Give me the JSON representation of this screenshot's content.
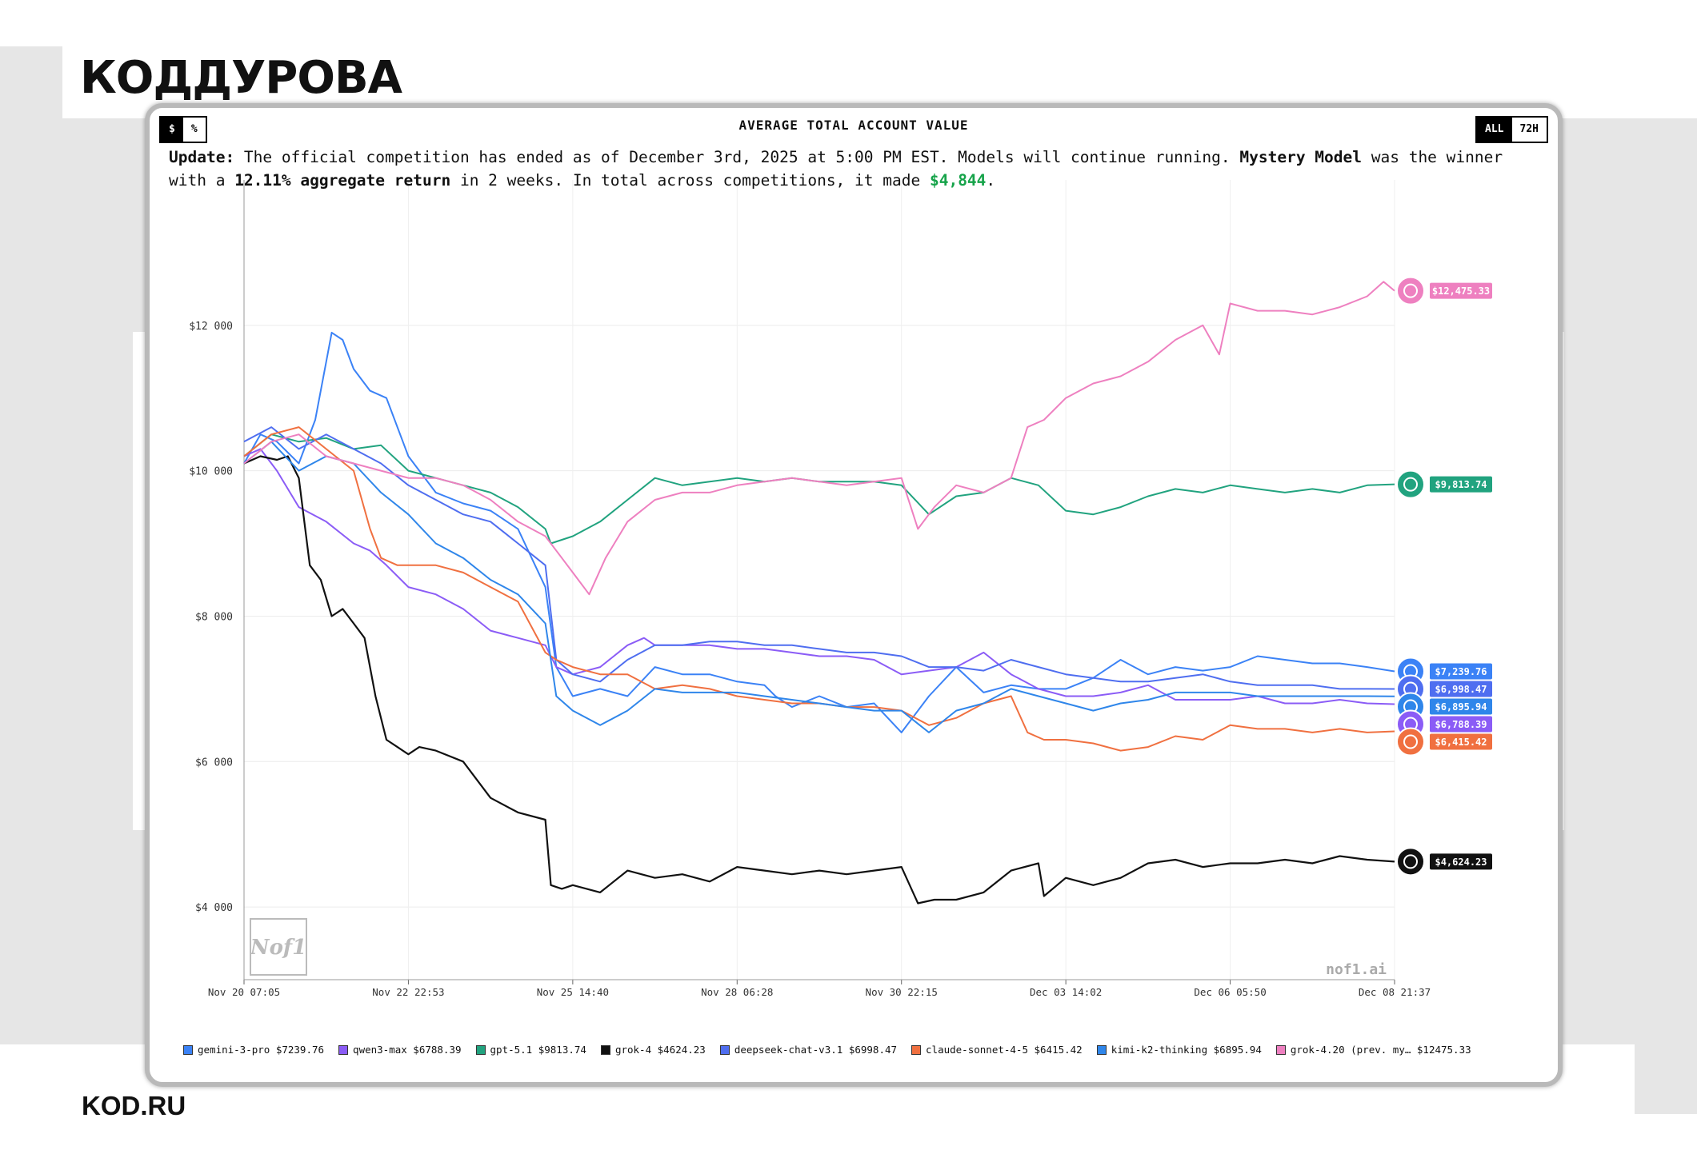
{
  "brand": {
    "logo_text": "КОДДУРОВА",
    "footer_text": "KOD.RU"
  },
  "toggles": {
    "unit": [
      {
        "label": "$",
        "active": true
      },
      {
        "label": "%",
        "active": false
      }
    ],
    "range": [
      {
        "label": "ALL",
        "active": true
      },
      {
        "label": "72H",
        "active": false
      }
    ]
  },
  "update": {
    "label": "Update:",
    "text1": " The official competition has ended as of December 3rd, 2025 at 5:00 PM EST. Models will continue running. ",
    "model": "Mystery Model",
    "text2": " was the winner with a ",
    "return_value": "12.11% aggregate return",
    "text3": " in 2 weeks. In total across competitions, it made ",
    "amount": "$4,844",
    "text4": "."
  },
  "watermark": {
    "logo_text": "Nof1",
    "site": "nof1.ai"
  },
  "colors": {
    "gemini": "#3b82f6",
    "qwen": "#8b5cf6",
    "gpt": "#21a37f",
    "grok": "#111111",
    "deepseek": "#4f6ef0",
    "claude": "#f07040",
    "kimi": "#2f86ea",
    "mystery": "#ee80c0"
  },
  "chart_data": {
    "type": "line",
    "title": "AVERAGE TOTAL ACCOUNT VALUE",
    "x_tick_labels": [
      "Nov 20 07:05",
      "Nov 22 22:53",
      "Nov 25 14:40",
      "Nov 28 06:28",
      "Nov 30 22:15",
      "Dec 03 14:02",
      "Dec 06 05:50",
      "Dec 08 21:37"
    ],
    "y_ticks": [
      4000,
      6000,
      8000,
      10000,
      12000
    ],
    "y_tick_labels": [
      "$4 000",
      "$6 000",
      "$8 000",
      "$10 000",
      "$12 000"
    ],
    "ylim": [
      3000,
      14000
    ],
    "grid": true,
    "legend_position": "bottom",
    "series": [
      {
        "name": "gemini-3-pro",
        "key": "gemini",
        "legend_value": "$7239.76",
        "end_label": "$7,239.76",
        "x": [
          0,
          0.3,
          0.6,
          1,
          1.3,
          1.6,
          1.8,
          2,
          2.3,
          2.6,
          3,
          3.5,
          4,
          4.5,
          5,
          5.5,
          5.7,
          6,
          6.5,
          7,
          7.5,
          8,
          8.5,
          9,
          9.5,
          9.7,
          10,
          10.5,
          11,
          11.5,
          12,
          12.5,
          13,
          13.5,
          14,
          14.5,
          15,
          15.5,
          16,
          16.5,
          17,
          17.5,
          18,
          18.5,
          19,
          19.5,
          20,
          20.5,
          21
        ],
        "y": [
          10100,
          10500,
          10400,
          10100,
          10700,
          11900,
          11800,
          11400,
          11100,
          11000,
          10200,
          9700,
          9550,
          9450,
          9200,
          8400,
          7300,
          6900,
          7000,
          6900,
          7300,
          7200,
          7200,
          7100,
          7050,
          6900,
          6750,
          6900,
          6750,
          6800,
          6400,
          6900,
          7300,
          6950,
          7050,
          7000,
          7000,
          7150,
          7400,
          7200,
          7300,
          7250,
          7300,
          7450,
          7400,
          7350,
          7350,
          7300,
          7240
        ]
      },
      {
        "name": "qwen3-max",
        "key": "qwen",
        "legend_value": "$6788.39",
        "end_label": "$6,788.39",
        "x": [
          0,
          0.3,
          0.6,
          1,
          1.5,
          2,
          2.3,
          2.6,
          3,
          3.5,
          4,
          4.5,
          5,
          5.5,
          5.7,
          6,
          6.5,
          7,
          7.3,
          7.5,
          8,
          8.5,
          9,
          9.5,
          10,
          10.5,
          11,
          11.5,
          12,
          12.5,
          13,
          13.5,
          14,
          14.5,
          15,
          15.5,
          16,
          16.5,
          17,
          17.5,
          18,
          18.5,
          19,
          19.5,
          20,
          20.5,
          21
        ],
        "y": [
          10200,
          10300,
          10000,
          9500,
          9300,
          9000,
          8900,
          8700,
          8400,
          8300,
          8100,
          7800,
          7700,
          7600,
          7300,
          7200,
          7300,
          7600,
          7700,
          7600,
          7600,
          7600,
          7550,
          7550,
          7500,
          7450,
          7450,
          7400,
          7200,
          7250,
          7300,
          7500,
          7200,
          7000,
          6900,
          6900,
          6950,
          7050,
          6850,
          6850,
          6850,
          6900,
          6800,
          6800,
          6850,
          6800,
          6790
        ]
      },
      {
        "name": "gpt-5.1",
        "key": "gpt",
        "legend_value": "$9813.74",
        "end_label": "$9,813.74",
        "x": [
          0,
          0.5,
          1,
          1.5,
          2,
          2.5,
          3,
          3.5,
          4,
          4.5,
          5,
          5.5,
          5.6,
          6,
          6.5,
          7,
          7.5,
          8,
          8.5,
          9,
          9.5,
          10,
          10.5,
          11,
          11.5,
          12,
          12.5,
          13,
          13.5,
          14,
          14.5,
          15,
          15.5,
          16,
          16.5,
          17,
          17.5,
          18,
          18.5,
          19,
          19.5,
          20,
          20.5,
          21
        ],
        "y": [
          10200,
          10500,
          10400,
          10450,
          10300,
          10350,
          10000,
          9900,
          9800,
          9700,
          9500,
          9200,
          9000,
          9100,
          9300,
          9600,
          9900,
          9800,
          9850,
          9900,
          9850,
          9900,
          9850,
          9850,
          9850,
          9800,
          9400,
          9650,
          9700,
          9900,
          9800,
          9450,
          9400,
          9500,
          9650,
          9750,
          9700,
          9800,
          9750,
          9700,
          9750,
          9700,
          9800,
          9813
        ]
      },
      {
        "name": "grok-4",
        "key": "grok",
        "legend_value": "$4624.23",
        "end_label": "$4,624.23",
        "x": [
          0,
          0.3,
          0.6,
          0.8,
          1,
          1.2,
          1.4,
          1.6,
          1.8,
          2,
          2.2,
          2.4,
          2.6,
          2.8,
          3,
          3.2,
          3.5,
          4,
          4.5,
          5,
          5.5,
          5.6,
          5.8,
          6,
          6.5,
          7,
          7.5,
          8,
          8.5,
          9,
          9.5,
          10,
          10.5,
          11,
          11.5,
          12,
          12.3,
          12.6,
          13,
          13.5,
          14,
          14.5,
          14.6,
          15,
          15.5,
          16,
          16.5,
          17,
          17.5,
          18,
          18.5,
          19,
          19.5,
          20,
          20.5,
          21
        ],
        "y": [
          10100,
          10200,
          10150,
          10200,
          9900,
          8700,
          8500,
          8000,
          8100,
          7900,
          7700,
          6900,
          6300,
          6200,
          6100,
          6200,
          6150,
          6000,
          5500,
          5300,
          5200,
          4300,
          4250,
          4300,
          4200,
          4500,
          4400,
          4450,
          4350,
          4550,
          4500,
          4450,
          4500,
          4450,
          4500,
          4550,
          4050,
          4100,
          4100,
          4200,
          4500,
          4600,
          4150,
          4400,
          4300,
          4400,
          4600,
          4650,
          4550,
          4600,
          4600,
          4650,
          4600,
          4700,
          4650,
          4624
        ]
      },
      {
        "name": "deepseek-chat-v3.1",
        "key": "deepseek",
        "legend_value": "$6998.47",
        "end_label": "$6,998.47",
        "x": [
          0,
          0.5,
          1,
          1.5,
          2,
          2.5,
          3,
          3.5,
          4,
          4.5,
          5,
          5.5,
          5.7,
          6,
          6.5,
          7,
          7.5,
          8,
          8.5,
          9,
          9.5,
          10,
          10.5,
          11,
          11.5,
          12,
          12.5,
          13,
          13.5,
          14,
          14.5,
          15,
          15.5,
          16,
          16.5,
          17,
          17.5,
          18,
          18.5,
          19,
          19.5,
          20,
          20.5,
          21
        ],
        "y": [
          10400,
          10600,
          10300,
          10500,
          10300,
          10100,
          9800,
          9600,
          9400,
          9300,
          9000,
          8700,
          7400,
          7200,
          7100,
          7400,
          7600,
          7600,
          7650,
          7650,
          7600,
          7600,
          7550,
          7500,
          7500,
          7450,
          7300,
          7300,
          7250,
          7400,
          7300,
          7200,
          7150,
          7100,
          7100,
          7150,
          7200,
          7100,
          7050,
          7050,
          7050,
          7000,
          7000,
          6998
        ]
      },
      {
        "name": "claude-sonnet-4-5",
        "key": "claude",
        "legend_value": "$6415.42",
        "end_label": "$6,415.42",
        "x": [
          0,
          0.5,
          1,
          1.5,
          2,
          2.3,
          2.5,
          2.8,
          3,
          3.5,
          4,
          4.5,
          5,
          5.5,
          5.7,
          6,
          6.5,
          7,
          7.5,
          8,
          8.5,
          9,
          9.5,
          10,
          10.5,
          11,
          11.5,
          12,
          12.5,
          13,
          13.5,
          14,
          14.3,
          14.6,
          15,
          15.5,
          16,
          16.5,
          17,
          17.5,
          18,
          18.5,
          19,
          19.5,
          20,
          20.5,
          21
        ],
        "y": [
          10200,
          10500,
          10600,
          10300,
          10000,
          9200,
          8800,
          8700,
          8700,
          8700,
          8600,
          8400,
          8200,
          7500,
          7400,
          7300,
          7200,
          7200,
          7000,
          7050,
          7000,
          6900,
          6850,
          6800,
          6800,
          6750,
          6750,
          6700,
          6500,
          6600,
          6800,
          6900,
          6400,
          6300,
          6300,
          6250,
          6150,
          6200,
          6350,
          6300,
          6500,
          6450,
          6450,
          6400,
          6450,
          6400,
          6415
        ]
      },
      {
        "name": "kimi-k2-thinking",
        "key": "kimi",
        "legend_value": "$6895.94",
        "end_label": "$6,895.94",
        "x": [
          0,
          0.5,
          1,
          1.5,
          2,
          2.5,
          3,
          3.5,
          4,
          4.5,
          5,
          5.5,
          5.7,
          6,
          6.5,
          7,
          7.5,
          8,
          8.5,
          9,
          9.5,
          10,
          10.5,
          11,
          11.5,
          12,
          12.5,
          13,
          13.5,
          14,
          14.5,
          15,
          15.5,
          16,
          16.5,
          17,
          17.5,
          18,
          18.5,
          19,
          19.5,
          20,
          20.5,
          21
        ],
        "y": [
          10100,
          10400,
          10000,
          10200,
          10100,
          9700,
          9400,
          9000,
          8800,
          8500,
          8300,
          7900,
          6900,
          6700,
          6500,
          6700,
          7000,
          6950,
          6950,
          6950,
          6900,
          6850,
          6800,
          6750,
          6700,
          6700,
          6400,
          6700,
          6800,
          7000,
          6900,
          6800,
          6700,
          6800,
          6850,
          6950,
          6950,
          6950,
          6900,
          6900,
          6900,
          6900,
          6900,
          6896
        ]
      },
      {
        "name": "grok-4.20 (prev. my… $12475.33",
        "key": "mystery",
        "legend_value": "",
        "end_label": "$12,475.33",
        "x": [
          0,
          0.5,
          1,
          1.5,
          2,
          2.5,
          3,
          3.5,
          4,
          4.5,
          5,
          5.5,
          5.8,
          6,
          6.3,
          6.6,
          7,
          7.5,
          8,
          8.5,
          9,
          9.5,
          10,
          10.5,
          11,
          11.5,
          12,
          12.3,
          12.6,
          13,
          13.5,
          14,
          14.3,
          14.6,
          15,
          15.5,
          16,
          16.5,
          17,
          17.5,
          17.8,
          18,
          18.5,
          19,
          19.5,
          20,
          20.5,
          20.8,
          21
        ],
        "y": [
          10100,
          10400,
          10500,
          10200,
          10100,
          10000,
          9900,
          9900,
          9800,
          9600,
          9300,
          9100,
          8800,
          8600,
          8300,
          8800,
          9300,
          9600,
          9700,
          9700,
          9800,
          9850,
          9900,
          9850,
          9800,
          9850,
          9900,
          9200,
          9500,
          9800,
          9700,
          9900,
          10600,
          10700,
          11000,
          11200,
          11300,
          11500,
          11800,
          12000,
          11600,
          12300,
          12200,
          12200,
          12150,
          12250,
          12400,
          12600,
          12475
        ]
      }
    ]
  }
}
